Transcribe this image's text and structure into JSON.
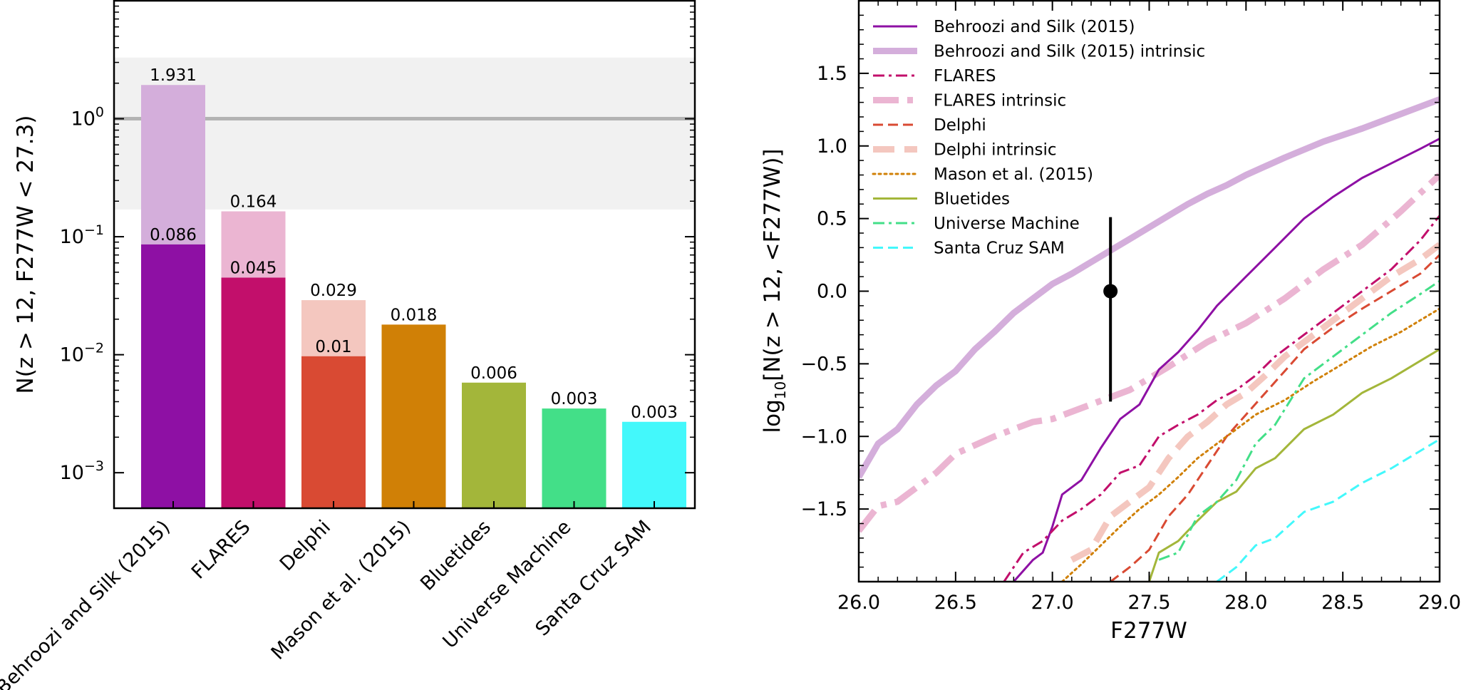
{
  "chart_data": [
    {
      "type": "bar",
      "yscale": "log",
      "ylabel_parts": [
        "N(z",
        " > ",
        "12, F277W",
        " < ",
        "27.3)"
      ],
      "ylim": [
        0.0005,
        10
      ],
      "yticks": [
        {
          "value": 0.001,
          "base": "10",
          "exp": "−3"
        },
        {
          "value": 0.01,
          "base": "10",
          "exp": "−2"
        },
        {
          "value": 0.1,
          "base": "10",
          "exp": "−1"
        },
        {
          "value": 1,
          "base": "10",
          "exp": "0"
        }
      ],
      "band": [
        0.17,
        3.3
      ],
      "reference_line": 1.0,
      "categories": [
        "Behroozi and Silk (2015)",
        "FLARES",
        "Delphi",
        "Mason et al. (2015)",
        "Bluetides",
        "Universe Machine",
        "Santa Cruz SAM"
      ],
      "values": [
        0.086,
        0.045,
        0.0097,
        0.018,
        0.0058,
        0.0035,
        0.0027
      ],
      "value_labels": [
        "0.086",
        "0.045",
        "0.01",
        "0.018",
        "0.006",
        "0.003",
        "0.003"
      ],
      "intrinsic_values": [
        1.931,
        0.164,
        0.029,
        null,
        null,
        null,
        null
      ],
      "intrinsic_labels": [
        "1.931",
        "0.164",
        "0.029",
        null,
        null,
        null,
        null
      ],
      "colors": [
        "#8e10a4",
        "#c20f6b",
        "#d94a33",
        "#d08006",
        "#a3b63a",
        "#43df88",
        "#43f8fb"
      ],
      "intrinsic_colors": [
        "#d4aedb",
        "#ebb5d2",
        "#f4c7bf",
        null,
        null,
        null,
        null
      ]
    },
    {
      "type": "line",
      "xlabel": "F277W",
      "ylabel_parts": [
        "log",
        "10",
        "[N(z",
        " > ",
        "12, ",
        "<",
        "F277W)]"
      ],
      "xlim": [
        26.0,
        29.0
      ],
      "ylim": [
        -2.0,
        2.0
      ],
      "xticks": [
        "26.0",
        "26.5",
        "27.0",
        "27.5",
        "28.0",
        "28.5",
        "29.0"
      ],
      "xtick_values": [
        26.0,
        26.5,
        27.0,
        27.5,
        28.0,
        28.5,
        29.0
      ],
      "yticks": [
        "−1.5",
        "−1.0",
        "−0.5",
        "0.0",
        "0.5",
        "1.0",
        "1.5"
      ],
      "ytick_values": [
        -1.5,
        -1.0,
        -0.5,
        0.0,
        0.5,
        1.0,
        1.5
      ],
      "errorbar": {
        "x": 27.3,
        "y": 0.0,
        "ylow": -0.76,
        "yhigh": 0.51
      },
      "series": [
        {
          "name": "Behroozi and Silk (2015)",
          "color": "#8e10a4",
          "style": "solid",
          "width": 3,
          "x": [
            26.8,
            26.9,
            26.95,
            27.0,
            27.05,
            27.15,
            27.25,
            27.35,
            27.45,
            27.55,
            27.65,
            27.75,
            27.85,
            28.0,
            28.15,
            28.3,
            28.45,
            28.6,
            28.75,
            28.9,
            29.0
          ],
          "y": [
            -2.0,
            -1.85,
            -1.8,
            -1.62,
            -1.4,
            -1.3,
            -1.08,
            -0.88,
            -0.78,
            -0.54,
            -0.42,
            -0.27,
            -0.1,
            0.1,
            0.3,
            0.5,
            0.65,
            0.78,
            0.88,
            0.98,
            1.05
          ]
        },
        {
          "name": "Behroozi and Silk (2015) intrinsic",
          "color": "#d4aedb",
          "style": "solid",
          "width": 9,
          "x": [
            26.0,
            26.1,
            26.2,
            26.3,
            26.4,
            26.5,
            26.6,
            26.7,
            26.8,
            26.9,
            27.0,
            27.1,
            27.2,
            27.3,
            27.4,
            27.5,
            27.6,
            27.7,
            27.8,
            27.9,
            28.0,
            28.2,
            28.4,
            28.6,
            28.8,
            29.0
          ],
          "y": [
            -1.28,
            -1.05,
            -0.95,
            -0.78,
            -0.65,
            -0.55,
            -0.4,
            -0.28,
            -0.15,
            -0.05,
            0.05,
            0.12,
            0.2,
            0.28,
            0.36,
            0.44,
            0.52,
            0.6,
            0.67,
            0.73,
            0.8,
            0.92,
            1.03,
            1.12,
            1.22,
            1.32
          ]
        },
        {
          "name": "FLARES",
          "color": "#c20f6b",
          "style": "dashdot",
          "width": 3,
          "x": [
            26.75,
            26.85,
            26.95,
            27.05,
            27.15,
            27.25,
            27.35,
            27.45,
            27.55,
            27.65,
            27.75,
            27.85,
            27.95,
            28.05,
            28.15,
            28.3,
            28.45,
            28.6,
            28.75,
            28.9,
            29.0
          ],
          "y": [
            -2.0,
            -1.8,
            -1.72,
            -1.58,
            -1.5,
            -1.4,
            -1.25,
            -1.2,
            -1.0,
            -0.92,
            -0.85,
            -0.75,
            -0.68,
            -0.58,
            -0.45,
            -0.3,
            -0.15,
            0.0,
            0.15,
            0.35,
            0.52
          ]
        },
        {
          "name": "FLARES intrinsic",
          "color": "#ebb5d2",
          "style": "dashdot",
          "width": 9,
          "x": [
            26.0,
            26.1,
            26.2,
            26.3,
            26.4,
            26.5,
            26.6,
            26.7,
            26.8,
            26.9,
            27.0,
            27.2,
            27.4,
            27.6,
            27.8,
            28.0,
            28.2,
            28.4,
            28.6,
            28.8,
            29.0
          ],
          "y": [
            -1.65,
            -1.48,
            -1.45,
            -1.35,
            -1.25,
            -1.12,
            -1.06,
            -1.0,
            -0.95,
            -0.9,
            -0.88,
            -0.78,
            -0.68,
            -0.52,
            -0.35,
            -0.22,
            -0.05,
            0.15,
            0.32,
            0.55,
            0.8
          ]
        },
        {
          "name": "Delphi",
          "color": "#d94a33",
          "style": "dashed",
          "width": 3,
          "x": [
            27.3,
            27.4,
            27.5,
            27.6,
            27.7,
            27.8,
            27.9,
            28.0,
            28.1,
            28.2,
            28.3,
            28.45,
            28.6,
            28.75,
            28.9,
            29.0
          ],
          "y": [
            -2.0,
            -1.9,
            -1.78,
            -1.55,
            -1.4,
            -1.2,
            -1.0,
            -0.85,
            -0.7,
            -0.55,
            -0.4,
            -0.25,
            -0.12,
            0.0,
            0.12,
            0.25
          ]
        },
        {
          "name": "Delphi intrinsic",
          "color": "#f4c7bf",
          "style": "dashed",
          "width": 9,
          "x": [
            27.1,
            27.2,
            27.3,
            27.4,
            27.5,
            27.6,
            27.7,
            27.8,
            27.9,
            28.0,
            28.1,
            28.2,
            28.3,
            28.45,
            28.6,
            28.75,
            28.9,
            29.0
          ],
          "y": [
            -1.85,
            -1.78,
            -1.55,
            -1.45,
            -1.35,
            -1.15,
            -1.0,
            -0.9,
            -0.78,
            -0.7,
            -0.58,
            -0.45,
            -0.35,
            -0.2,
            -0.05,
            0.1,
            0.22,
            0.32
          ]
        },
        {
          "name": "Mason et al. (2015)",
          "color": "#d08006",
          "style": "dotted",
          "width": 3,
          "x": [
            27.05,
            27.15,
            27.25,
            27.35,
            27.45,
            27.55,
            27.65,
            27.75,
            27.85,
            27.95,
            28.05,
            28.2,
            28.35,
            28.5,
            28.65,
            28.8,
            28.9,
            29.0
          ],
          "y": [
            -2.0,
            -1.88,
            -1.75,
            -1.62,
            -1.5,
            -1.4,
            -1.28,
            -1.15,
            -1.05,
            -0.95,
            -0.85,
            -0.75,
            -0.62,
            -0.5,
            -0.38,
            -0.28,
            -0.2,
            -0.12
          ]
        },
        {
          "name": "Bluetides",
          "color": "#a3b63a",
          "style": "solid",
          "width": 3,
          "x": [
            27.5,
            27.55,
            27.65,
            27.75,
            27.85,
            27.95,
            28.05,
            28.15,
            28.3,
            28.45,
            28.6,
            28.75,
            28.9,
            29.0
          ],
          "y": [
            -2.0,
            -1.8,
            -1.72,
            -1.58,
            -1.45,
            -1.38,
            -1.22,
            -1.15,
            -0.95,
            -0.85,
            -0.7,
            -0.6,
            -0.48,
            -0.4
          ]
        },
        {
          "name": "Universe Machine",
          "color": "#43df88",
          "style": "dashdot",
          "width": 3,
          "x": [
            27.55,
            27.65,
            27.75,
            27.85,
            27.95,
            28.05,
            28.15,
            28.3,
            28.45,
            28.6,
            28.75,
            28.9,
            29.0
          ],
          "y": [
            -1.85,
            -1.8,
            -1.55,
            -1.45,
            -1.3,
            -1.05,
            -0.92,
            -0.6,
            -0.45,
            -0.3,
            -0.15,
            -0.02,
            0.07
          ]
        },
        {
          "name": "Santa Cruz SAM",
          "color": "#43f8fb",
          "style": "dashed",
          "width": 3,
          "x": [
            27.85,
            27.95,
            28.05,
            28.15,
            28.3,
            28.45,
            28.6,
            28.75,
            28.9,
            29.0
          ],
          "y": [
            -2.0,
            -1.9,
            -1.75,
            -1.7,
            -1.52,
            -1.45,
            -1.32,
            -1.22,
            -1.1,
            -1.02
          ]
        }
      ]
    }
  ]
}
